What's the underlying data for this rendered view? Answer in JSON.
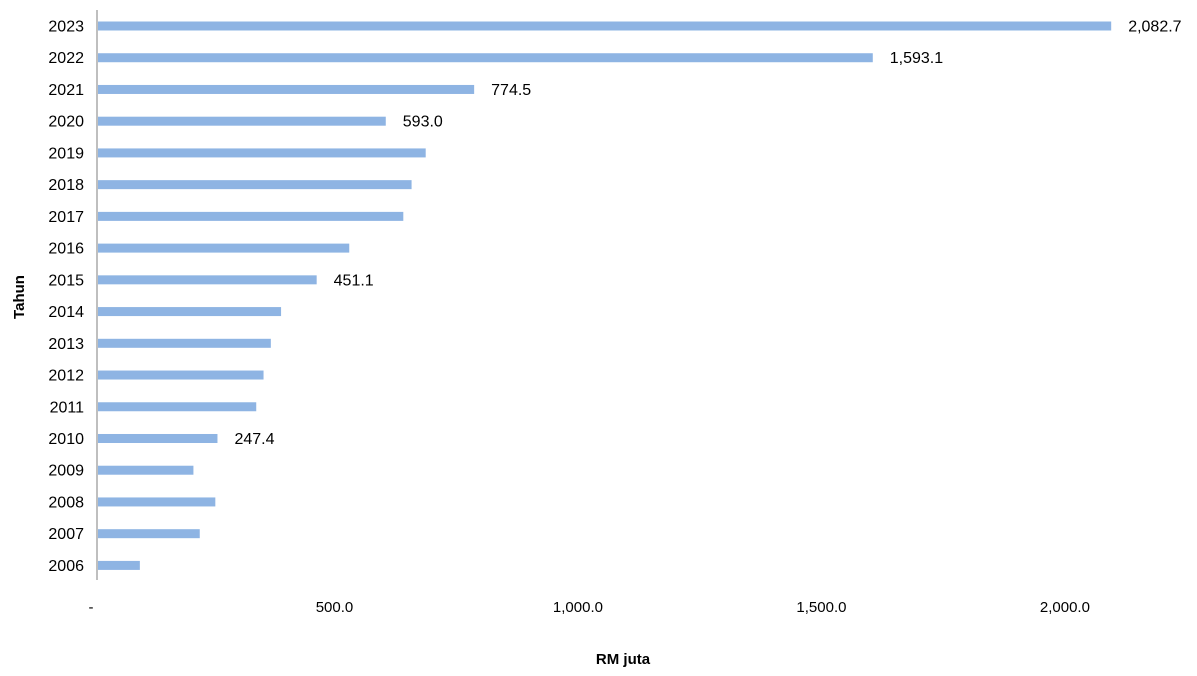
{
  "chart_data": {
    "type": "bar",
    "orientation": "horizontal",
    "categories": [
      "2006",
      "2007",
      "2008",
      "2009",
      "2010",
      "2011",
      "2012",
      "2013",
      "2014",
      "2015",
      "2016",
      "2017",
      "2018",
      "2019",
      "2020",
      "2021",
      "2022",
      "2023"
    ],
    "values": [
      88.0,
      211.0,
      243.0,
      198.0,
      247.4,
      327.0,
      342.0,
      357.0,
      378.0,
      451.1,
      518.0,
      629.0,
      646.0,
      675.0,
      593.0,
      774.5,
      1593.1,
      2082.7
    ],
    "data_labels": {
      "2010": "247.4",
      "2015": "451.1",
      "2020": "593.0",
      "2021": "774.5",
      "2022": "1,593.1",
      "2023": "2,082.7"
    },
    "xlabel": "RM juta",
    "ylabel": "Tahun",
    "xlim": [
      0,
      2150
    ],
    "x_ticks": [
      0,
      500,
      1000,
      1500,
      2000
    ],
    "x_tick_labels": [
      "-",
      "500.0",
      "1,000.0",
      "1,500.0",
      "2,000.0"
    ],
    "grid": false,
    "legend": "none",
    "bar_color": "#8EB4E3",
    "axis_color": "#BFBFBF"
  }
}
